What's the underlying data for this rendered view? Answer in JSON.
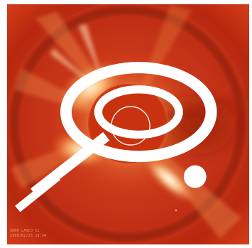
{
  "image": {
    "subject": "",
    "caption_lines": [
      "SOHO LASCO C2",
      "1998/02/23 13:54"
    ],
    "logo_icon": "soho-logo-icon",
    "colors": {
      "background": "#c92e12",
      "occulter": "#c8320f",
      "corona_bright": "#fff2c8",
      "corona_mid": "#f58a3a",
      "sun_outline": "#fff0e6",
      "frame": "#ffffff"
    }
  }
}
